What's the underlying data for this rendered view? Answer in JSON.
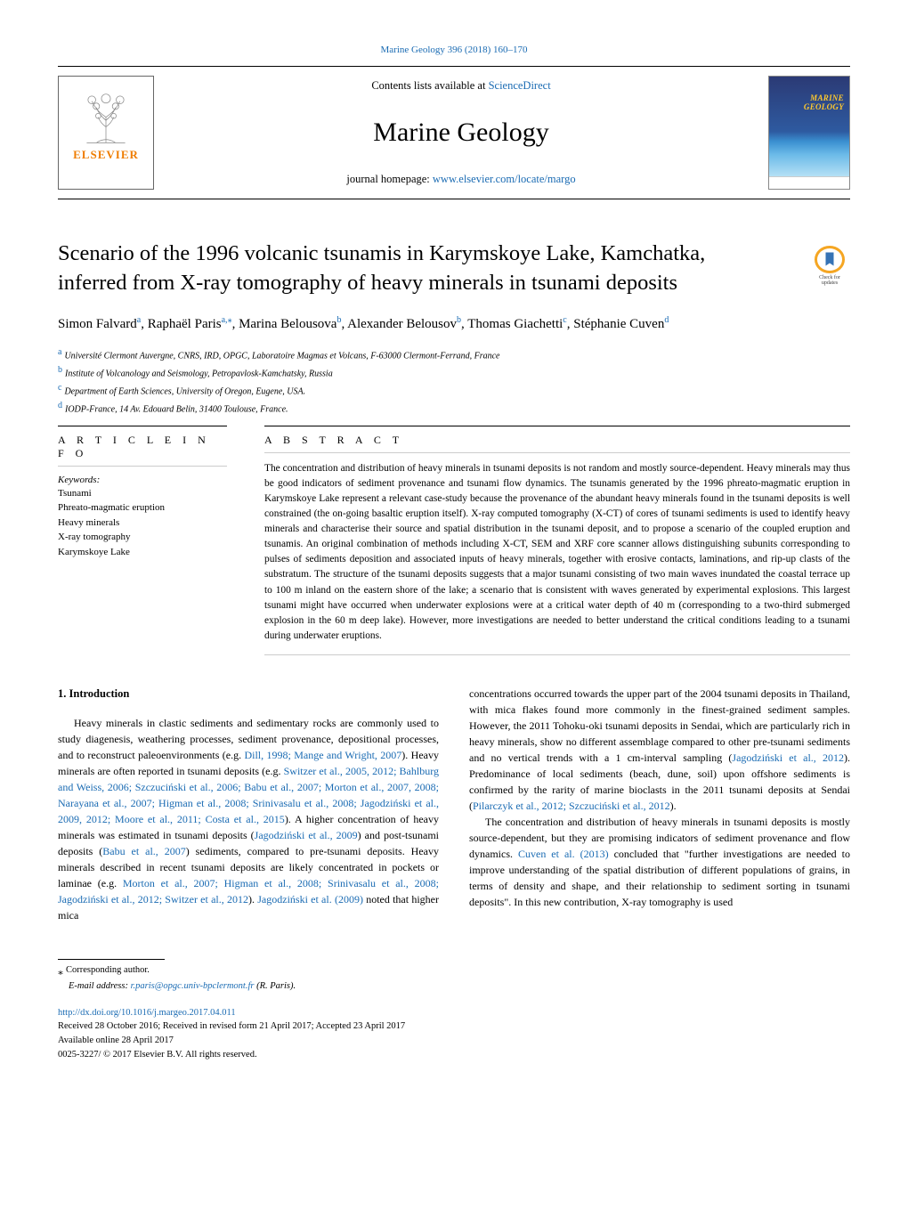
{
  "top_citation": {
    "journal": "Marine Geology",
    "issue": "396 (2018) 160–170"
  },
  "masthead": {
    "contents_prefix": "Contents lists available at ",
    "contents_link": "ScienceDirect",
    "journal": "Marine Geology",
    "homepage_prefix": "journal homepage: ",
    "homepage_link": "www.elsevier.com/locate/margo",
    "publisher": "ELSEVIER",
    "cover_title": "MARINE\nGEOLOGY"
  },
  "crossmark": "Check for\nupdates",
  "title": "Scenario of the 1996 volcanic tsunamis in Karymskoye Lake, Kamchatka, inferred from X-ray tomography of heavy minerals in tsunami deposits",
  "authors_html": "Simon Falvard<span class='sup'>a</span>, Raphaël Paris<span class='sup'>a,</span><span class='sup'>⁎</span>, Marina Belousova<span class='sup'>b</span>, Alexander Belousov<span class='sup'>b</span>, Thomas Giachetti<span class='sup'>c</span>, Stéphanie Cuven<span class='sup'>d</span>",
  "affiliations": [
    {
      "key": "a",
      "text": "Université Clermont Auvergne, CNRS, IRD, OPGC, Laboratoire Magmas et Volcans, F-63000 Clermont-Ferrand, France"
    },
    {
      "key": "b",
      "text": "Institute of Volcanology and Seismology, Petropavlosk-Kamchatsky, Russia"
    },
    {
      "key": "c",
      "text": "Department of Earth Sciences, University of Oregon, Eugene, USA."
    },
    {
      "key": "d",
      "text": "IODP-France, 14 Av. Edouard Belin, 31400 Toulouse, France."
    }
  ],
  "headings": {
    "info": "A R T I C L E  I N F O",
    "abstract": "A B S T R A C T",
    "intro": "1. Introduction"
  },
  "keywords": {
    "label": "Keywords:",
    "items": [
      "Tsunami",
      "Phreato-magmatic eruption",
      "Heavy minerals",
      "X-ray tomography",
      "Karymskoye Lake"
    ]
  },
  "abstract": "The concentration and distribution of heavy minerals in tsunami deposits is not random and mostly source-dependent. Heavy minerals may thus be good indicators of sediment provenance and tsunami flow dynamics. The tsunamis generated by the 1996 phreato-magmatic eruption in Karymskoye Lake represent a relevant case-study because the provenance of the abundant heavy minerals found in the tsunami deposits is well constrained (the on-going basaltic eruption itself). X-ray computed tomography (X-CT) of cores of tsunami sediments is used to identify heavy minerals and characterise their source and spatial distribution in the tsunami deposit, and to propose a scenario of the coupled eruption and tsunamis. An original combination of methods including X-CT, SEM and XRF core scanner allows distinguishing subunits corresponding to pulses of sediments deposition and associated inputs of heavy minerals, together with erosive contacts, laminations, and rip-up clasts of the substratum. The structure of the tsunami deposits suggests that a major tsunami consisting of two main waves inundated the coastal terrace up to 100 m inland on the eastern shore of the lake; a scenario that is consistent with waves generated by experimental explosions. This largest tsunami might have occurred when underwater explosions were at a critical water depth of 40 m (corresponding to a two-third submerged explosion in the 60 m deep lake). However, more investigations are needed to better understand the critical conditions leading to a tsunami during underwater eruptions.",
  "body": {
    "col1": "Heavy minerals in clastic sediments and sedimentary rocks are commonly used to study diagenesis, weathering processes, sediment provenance, depositional processes, and to reconstruct paleoenvironments (e.g. <a href='#'>Dill, 1998; Mange and Wright, 2007</a>). Heavy minerals are often reported in tsunami deposits (e.g. <a href='#'>Switzer et al., 2005, 2012; Bahlburg and Weiss, 2006; Szczuciński et al., 2006; Babu et al., 2007; Morton et al., 2007, 2008; Narayana et al., 2007; Higman et al., 2008; Srinivasalu et al., 2008; Jagodziński et al., 2009, 2012; Moore et al., 2011; Costa et al., 2015</a>). A higher concentration of heavy minerals was estimated in tsunami deposits (<a href='#'>Jagodziński et al., 2009</a>) and post-tsunami deposits (<a href='#'>Babu et al., 2007</a>) sediments, compared to pre-tsunami deposits. Heavy minerals described in recent tsunami deposits are likely concentrated in pockets or laminae (e.g. <a href='#'>Morton et al., 2007; Higman et al., 2008; Srinivasalu et al., 2008; Jagodziński et al., 2012; Switzer et al., 2012</a>). <a href='#'>Jagodziński et al. (2009)</a> noted that higher mica",
    "col2_p1": "concentrations occurred towards the upper part of the 2004 tsunami deposits in Thailand, with mica flakes found more commonly in the finest-grained sediment samples. However, the 2011 Tohoku-oki tsunami deposits in Sendai, which are particularly rich in heavy minerals, show no different assemblage compared to other pre-tsunami sediments and no vertical trends with a 1 cm-interval sampling (<a href='#'>Jagodziński et al., 2012</a>). Predominance of local sediments (beach, dune, soil) upon offshore sediments is confirmed by the rarity of marine bioclasts in the 2011 tsunami deposits at Sendai (<a href='#'>Pilarczyk et al., 2012; Szczuciński et al., 2012</a>).",
    "col2_p2": "The concentration and distribution of heavy minerals in tsunami deposits is mostly source-dependent, but they are promising indicators of sediment provenance and flow dynamics. <a href='#'>Cuven et al. (2013)</a> concluded that \"further investigations are needed to improve understanding of the spatial distribution of different populations of grains, in terms of density and shape, and their relationship to sediment sorting in tsunami deposits\". In this new contribution, X-ray tomography is used"
  },
  "footer": {
    "corresponding": "Corresponding author.",
    "email_label": "E-mail address: ",
    "email": "r.paris@opgc.univ-bpclermont.fr",
    "email_suffix": " (R. Paris).",
    "doi": "http://dx.doi.org/10.1016/j.margeo.2017.04.011",
    "received": "Received 28 October 2016; Received in revised form 21 April 2017; Accepted 23 April 2017",
    "online": "Available online 28 April 2017",
    "copyright": "0025-3227/ © 2017 Elsevier B.V. All rights reserved."
  }
}
